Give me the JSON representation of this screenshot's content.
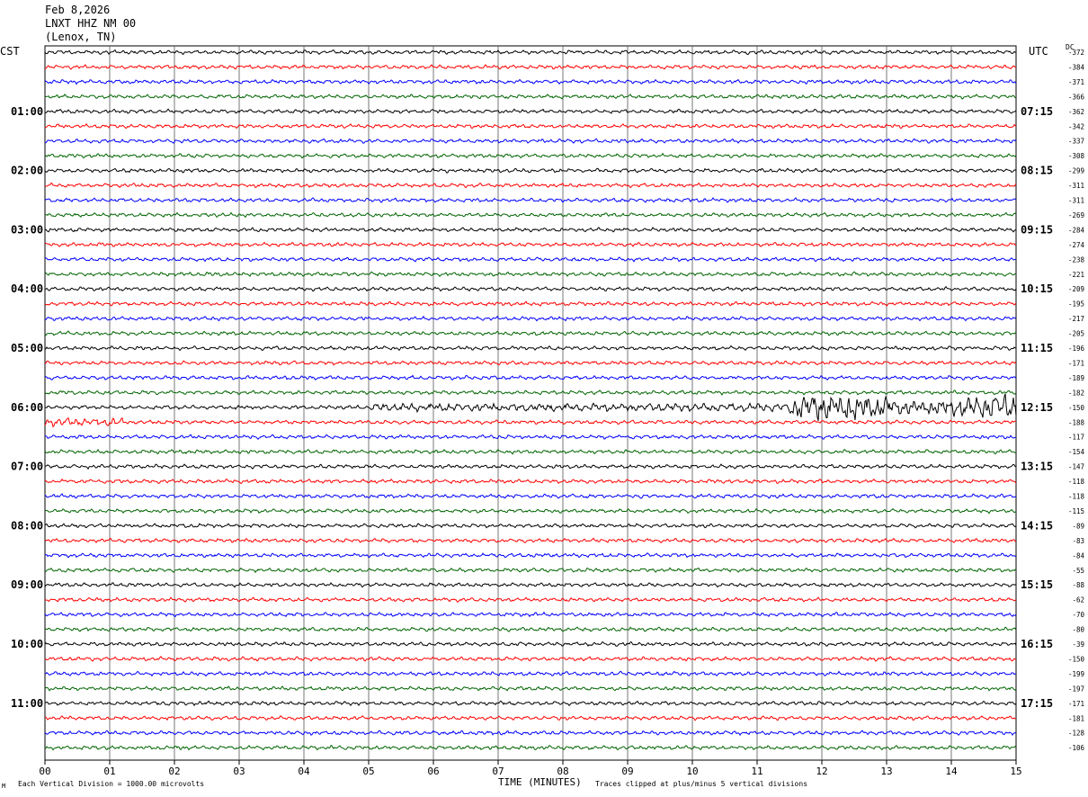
{
  "header": {
    "date": "Feb 8,2026",
    "station": "LNXT HHZ NM 00",
    "location": "(Lenox, TN)"
  },
  "left_title": "CST",
  "right_title": "UTC",
  "dc_label": "DC",
  "footer": {
    "scale_note": "Each Vertical Division = 1000.00 microvolts",
    "clip_note": "Traces clipped at plus/minus 5 vertical divisions",
    "corner_mark": "M"
  },
  "colors": {
    "trace_cycle": [
      "#000000",
      "#ff0000",
      "#0000ff",
      "#006400"
    ],
    "grid": "#000000"
  },
  "chart_data": {
    "type": "line",
    "subtype": "helicorder",
    "xlabel": "TIME (MINUTES)",
    "x_ticks": [
      "00",
      "01",
      "02",
      "03",
      "04",
      "05",
      "06",
      "07",
      "08",
      "09",
      "10",
      "11",
      "12",
      "13",
      "14",
      "15"
    ],
    "xlim": [
      0,
      15
    ],
    "minutes_per_line": 15,
    "rows": 48,
    "left_hour_labels": [
      "01:00",
      "02:00",
      "03:00",
      "04:00",
      "05:00",
      "06:00",
      "07:00",
      "08:00",
      "09:00",
      "10:00",
      "11:00"
    ],
    "right_hour_labels": [
      "07:15",
      "08:15",
      "09:15",
      "10:15",
      "11:15",
      "12:15",
      "13:15",
      "14:15",
      "15:15",
      "16:15",
      "17:15"
    ],
    "dc_offsets": [
      -372,
      -384,
      -371,
      -366,
      -362,
      -342,
      -337,
      -308,
      -299,
      -311,
      -311,
      -269,
      -284,
      -274,
      -238,
      -221,
      -209,
      -195,
      -217,
      -205,
      -196,
      -171,
      -189,
      -182,
      -150,
      -188,
      -117,
      -154,
      -147,
      -118,
      -118,
      -115,
      -89,
      -83,
      -84,
      -55,
      -88,
      -62,
      -70,
      -80,
      -39,
      -150,
      -199,
      -197,
      -171,
      -181,
      -128,
      -106
    ],
    "events": [
      {
        "row": 24,
        "start_min": 5.0,
        "end_min": 11.5,
        "amplitude": "moderate"
      },
      {
        "row": 24,
        "start_min": 11.5,
        "end_min": 15.0,
        "amplitude": "large"
      },
      {
        "row": 25,
        "start_min": 0.0,
        "end_min": 1.2,
        "amplitude": "moderate"
      }
    ]
  }
}
